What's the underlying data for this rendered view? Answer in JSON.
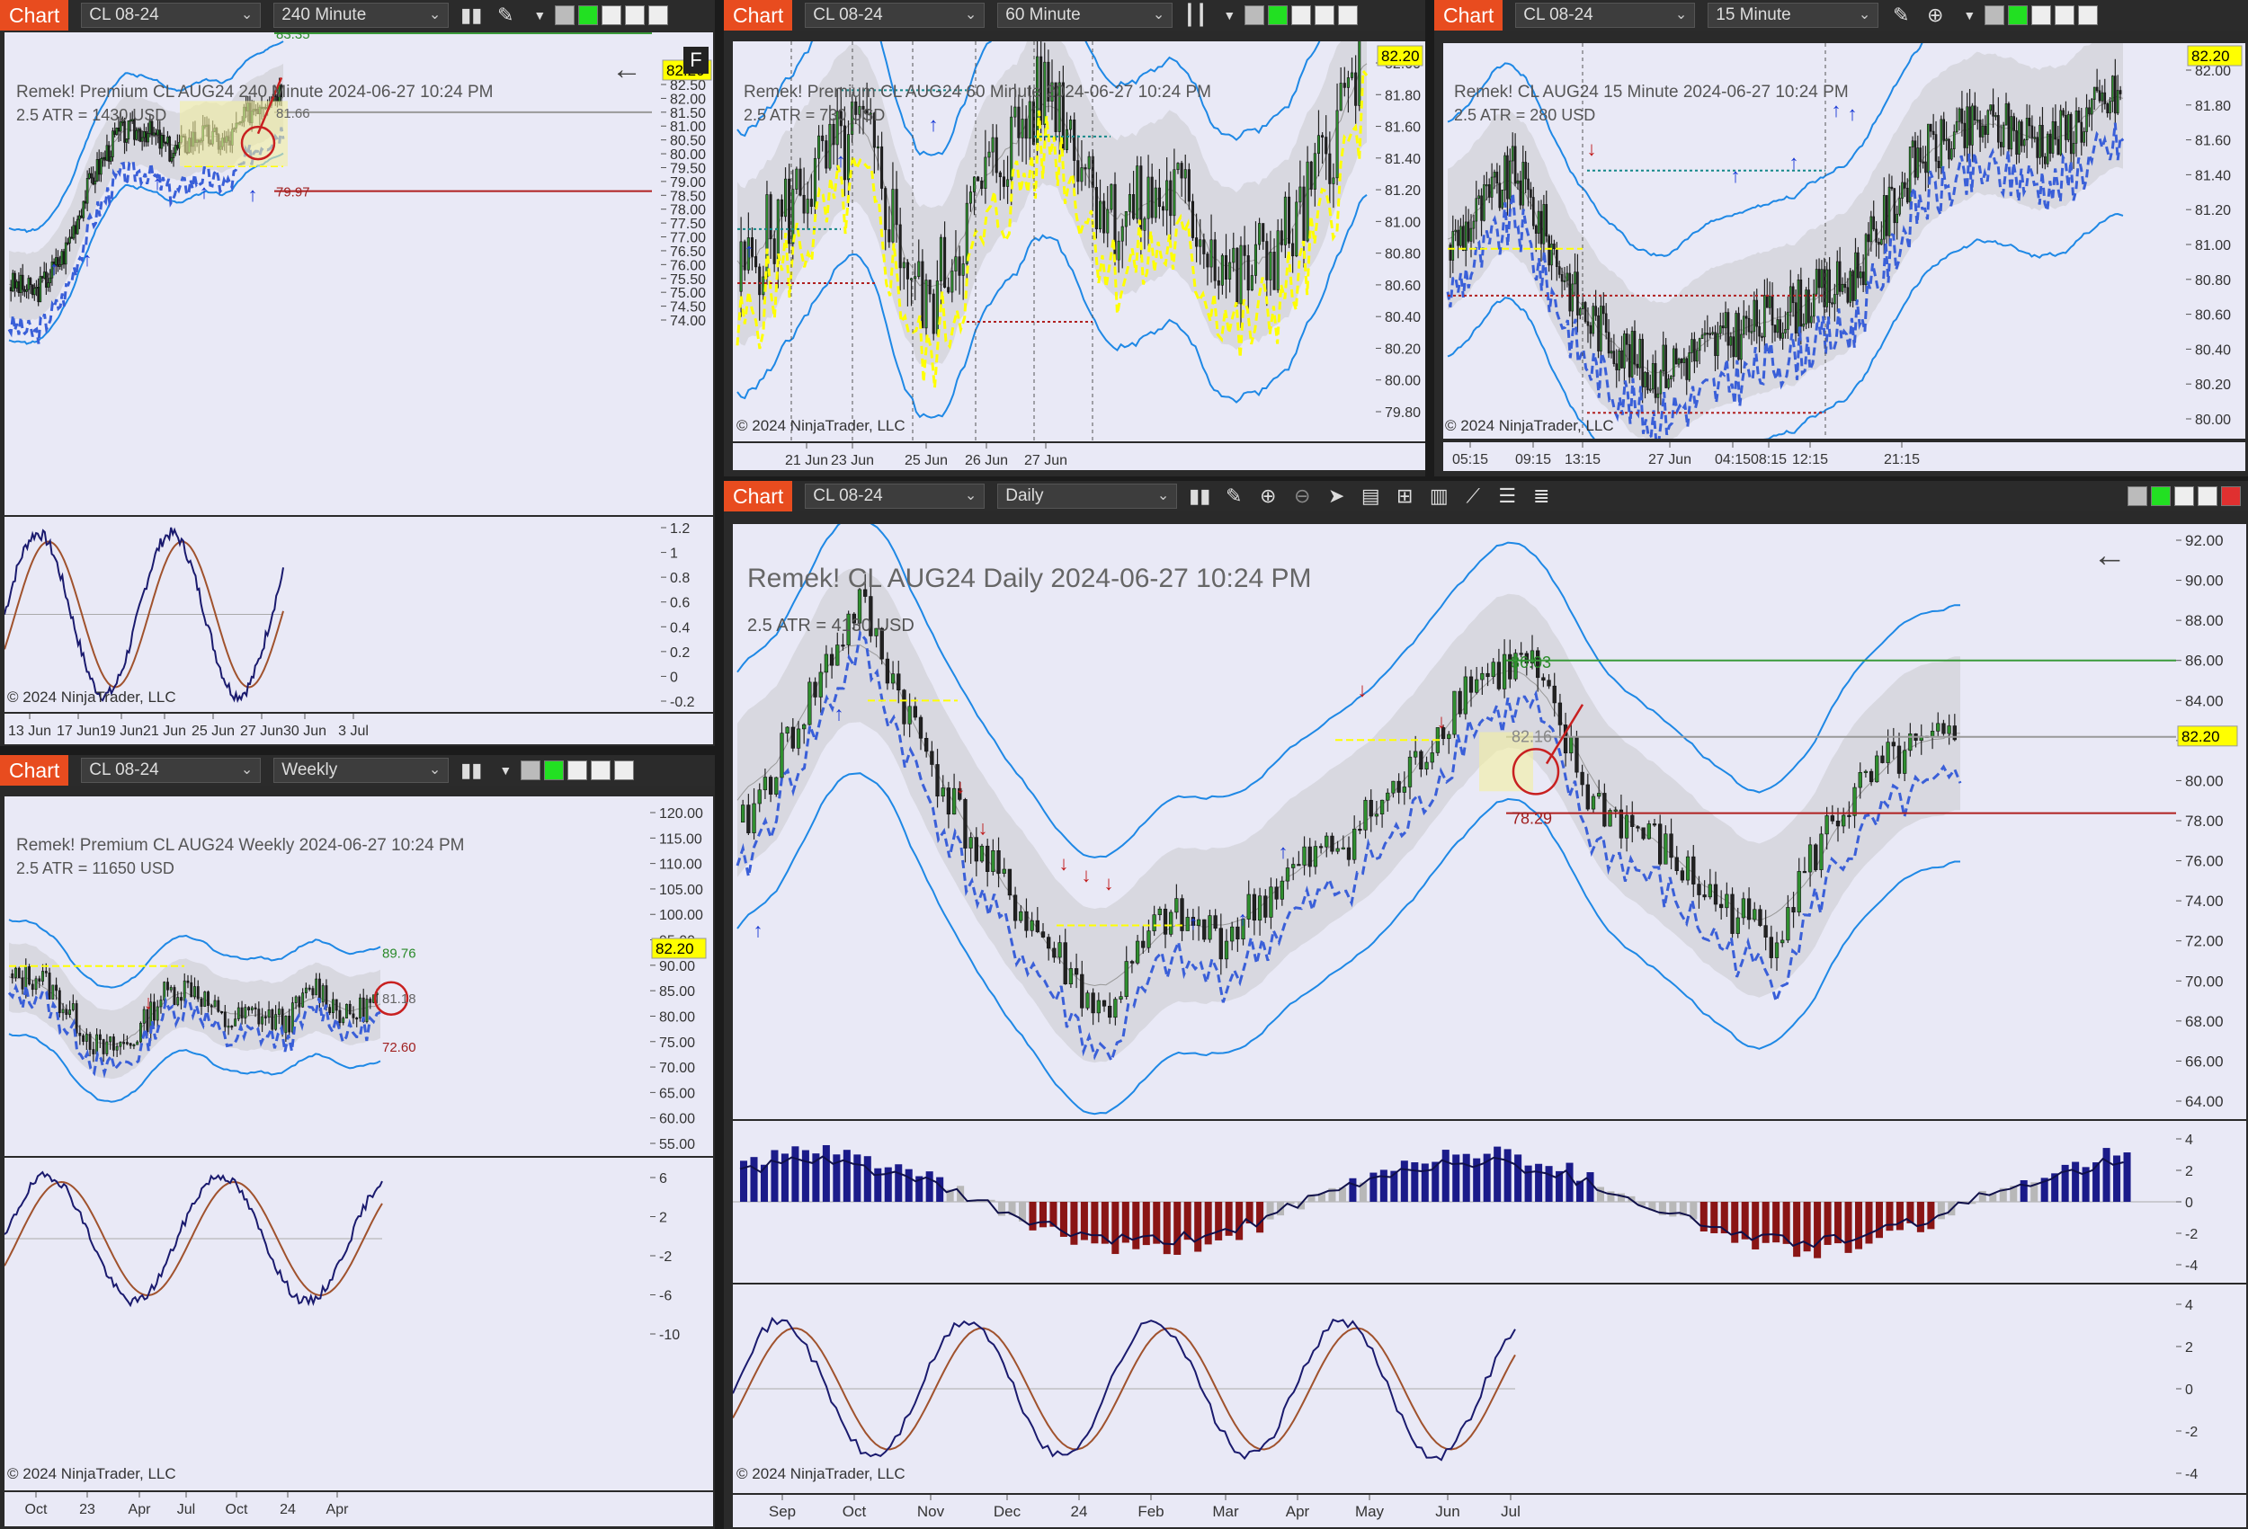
{
  "windows": [
    {
      "id": "w240",
      "badge": "Chart",
      "instrument": "CL 08-24",
      "interval": "240 Minute",
      "title": "Remek!  Premium  CL AUG24  240 Minute  2024-06-27 10:24 PM",
      "atr": "2.5 ATR = 1430 USD",
      "price_badge": "82.20",
      "target_up": "83.35",
      "target_mid": "81.66",
      "target_down": "79.97",
      "price_ticks": [
        "82.50",
        "82.00",
        "81.50",
        "81.00",
        "80.50",
        "80.00",
        "79.50",
        "79.00",
        "78.50",
        "78.00",
        "77.50",
        "77.00",
        "76.50",
        "76.00",
        "75.50",
        "75.00",
        "74.50",
        "74.00"
      ],
      "osc_ticks": [
        "1.2",
        "1",
        "0.8",
        "0.6",
        "0.4",
        "0.2",
        "0",
        "-0.2"
      ],
      "x_ticks": [
        "13 Jun",
        "17 Jun",
        "19 Jun",
        "21 Jun",
        "25 Jun",
        "27 Jun",
        "30 Jun",
        "3 Jul"
      ],
      "copyright": "© 2024 NinjaTrader, LLC",
      "f_button": "F"
    },
    {
      "id": "w60",
      "badge": "Chart",
      "instrument": "CL 08-24",
      "interval": "60 Minute",
      "title": "Remek!  Premium  CL AUG24  60 Minute  2024-06-27 10:24 PM",
      "atr": "2.5 ATR = 730 USD",
      "price_badge": "82.20",
      "price_ticks": [
        "82.00",
        "81.80",
        "81.60",
        "81.40",
        "81.20",
        "81.00",
        "80.80",
        "80.60",
        "80.40",
        "80.20",
        "80.00",
        "79.80"
      ],
      "x_ticks": [
        "21 Jun",
        "23 Jun",
        "25 Jun",
        "26 Jun",
        "27 Jun"
      ],
      "copyright": "© 2024 NinjaTrader, LLC"
    },
    {
      "id": "w15",
      "badge": "Chart",
      "instrument": "CL 08-24",
      "interval": "15 Minute",
      "title": "Remek!  CL AUG24  15 Minute  2024-06-27 10:24 PM",
      "atr": "2.5 ATR = 280 USD",
      "price_badge": "82.20",
      "price_ticks": [
        "82.00",
        "81.80",
        "81.60",
        "81.40",
        "81.20",
        "81.00",
        "80.80",
        "80.60",
        "80.40",
        "80.20",
        "80.00"
      ],
      "x_ticks": [
        "05:15",
        "09:15",
        "13:15",
        "27 Jun",
        "04:15",
        "08:15",
        "12:15",
        "21:15"
      ],
      "copyright": "© 2024 NinjaTrader, LLC"
    },
    {
      "id": "wW",
      "badge": "Chart",
      "instrument": "CL 08-24",
      "interval": "Weekly",
      "title": "Remek!  Premium  CL AUG24  Weekly  2024-06-27 10:24 PM",
      "atr": "2.5 ATR = 11650 USD",
      "price_badge": "82.20",
      "target_up": "89.76",
      "target_mid": "81.18",
      "target_down": "72.60",
      "price_ticks": [
        "120.00",
        "115.00",
        "110.00",
        "105.00",
        "100.00",
        "95.00",
        "90.00",
        "85.00",
        "80.00",
        "75.00",
        "70.00",
        "65.00",
        "60.00",
        "55.00"
      ],
      "osc_ticks": [
        "6",
        "2",
        "-2",
        "-6",
        "-10"
      ],
      "x_ticks": [
        "Oct",
        "23",
        "Apr",
        "Jul",
        "Oct",
        "24",
        "Apr"
      ],
      "copyright": "© 2024 NinjaTrader, LLC"
    },
    {
      "id": "wD",
      "badge": "Chart",
      "instrument": "CL 08-24",
      "interval": "Daily",
      "title": "Remek!  CL AUG24  Daily  2024-06-27 10:24 PM",
      "atr": "2.5 ATR = 4130 USD",
      "price_badge": "82.20",
      "target_up": "86.03",
      "target_mid": "82.16",
      "target_down": "78.29",
      "price_ticks": [
        "92.00",
        "90.00",
        "88.00",
        "86.00",
        "84.00",
        "82.00",
        "80.00",
        "78.00",
        "76.00",
        "74.00",
        "72.00",
        "70.00",
        "68.00",
        "66.00",
        "64.00"
      ],
      "hist_ticks": [
        "4",
        "2",
        "0",
        "-2",
        "-4"
      ],
      "osc_ticks": [
        "4",
        "2",
        "0",
        "-2",
        "-4"
      ],
      "x_ticks": [
        "Sep",
        "Oct",
        "Nov",
        "Dec",
        "24",
        "Feb",
        "Mar",
        "Apr",
        "May",
        "Jun",
        "Jul"
      ],
      "copyright": "© 2024 NinjaTrader, LLC"
    }
  ],
  "colors": {
    "badge": "#e84c1f",
    "bg": "#e9e9f6",
    "band": "#1e88e5",
    "up": "#ffff00",
    "down": "#dd2222",
    "arrow_up": "#1a3ad6",
    "price_badge": "#ffff00",
    "toolbar": "#2b2b2b"
  },
  "toolbar_icons": [
    "bar-chart-icon",
    "pencil-icon",
    "zoom-in-icon",
    "zoom-out-icon",
    "cursor-icon",
    "data-box-icon",
    "chart-style-icon",
    "indicators-icon",
    "strategies-icon",
    "properties-icon",
    "list-icon"
  ]
}
